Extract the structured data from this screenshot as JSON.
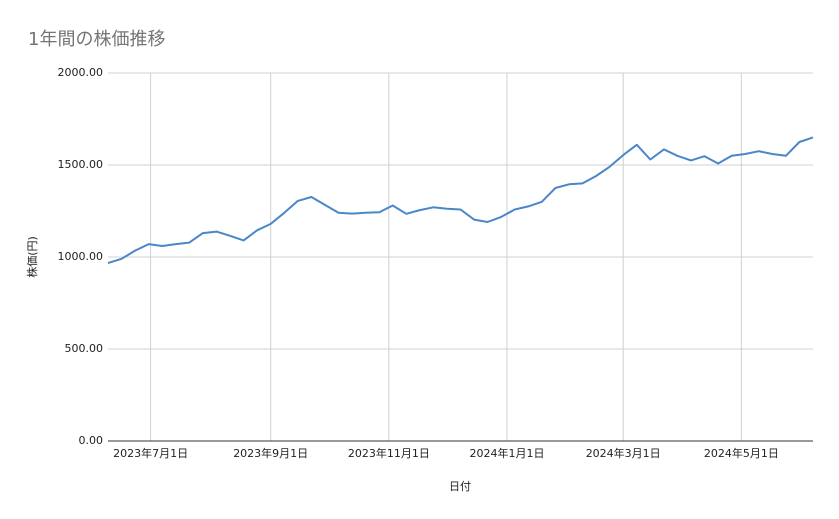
{
  "chart_data": {
    "type": "line",
    "title": "1年間の株価推移",
    "x_label": "日付",
    "y_label": "株価(円)",
    "x": [
      "2023-06-09",
      "2023-06-16",
      "2023-06-23",
      "2023-06-30",
      "2023-07-07",
      "2023-07-14",
      "2023-07-21",
      "2023-07-28",
      "2023-08-04",
      "2023-08-11",
      "2023-08-18",
      "2023-08-25",
      "2023-09-01",
      "2023-09-08",
      "2023-09-15",
      "2023-09-22",
      "2023-09-29",
      "2023-10-06",
      "2023-10-13",
      "2023-10-20",
      "2023-10-27",
      "2023-11-03",
      "2023-11-10",
      "2023-11-17",
      "2023-11-24",
      "2023-12-01",
      "2023-12-08",
      "2023-12-15",
      "2023-12-22",
      "2023-12-29",
      "2024-01-05",
      "2024-01-12",
      "2024-01-19",
      "2024-01-26",
      "2024-02-02",
      "2024-02-09",
      "2024-02-16",
      "2024-02-23",
      "2024-03-01",
      "2024-03-08",
      "2024-03-15",
      "2024-03-22",
      "2024-03-29",
      "2024-04-05",
      "2024-04-12",
      "2024-04-19",
      "2024-04-26",
      "2024-05-03",
      "2024-05-10",
      "2024-05-17",
      "2024-05-24",
      "2024-05-31",
      "2024-06-07"
    ],
    "series": [
      {
        "name": "株価",
        "color": "#4a86c8",
        "values": [
          967,
          990,
          1035,
          1070,
          1060,
          1070,
          1078,
          1130,
          1138,
          1115,
          1090,
          1145,
          1180,
          1240,
          1305,
          1326,
          1283,
          1240,
          1236,
          1240,
          1243,
          1280,
          1235,
          1255,
          1270,
          1262,
          1258,
          1203,
          1190,
          1218,
          1258,
          1275,
          1300,
          1375,
          1395,
          1400,
          1440,
          1490,
          1554,
          1610,
          1530,
          1585,
          1550,
          1525,
          1548,
          1508,
          1550,
          1560,
          1575,
          1560,
          1550,
          1625,
          1650
        ]
      }
    ],
    "xlim": [
      "2023-06-09",
      "2024-06-07"
    ],
    "xticks": [
      {
        "value": "2023-07-01",
        "label": "2023年7月1日"
      },
      {
        "value": "2023-09-01",
        "label": "2023年9月1日"
      },
      {
        "value": "2023-11-01",
        "label": "2023年11月1日"
      },
      {
        "value": "2024-01-01",
        "label": "2024年1月1日"
      },
      {
        "value": "2024-03-01",
        "label": "2024年3月1日"
      },
      {
        "value": "2024-05-01",
        "label": "2024年5月1日"
      }
    ],
    "ylim": [
      0,
      2000
    ],
    "yticks": [
      {
        "value": 0,
        "label": "0.00"
      },
      {
        "value": 500,
        "label": "500.00"
      },
      {
        "value": 1000,
        "label": "1000.00"
      },
      {
        "value": 1500,
        "label": "1500.00"
      },
      {
        "value": 2000,
        "label": "2000.00"
      }
    ],
    "grid": true
  }
}
